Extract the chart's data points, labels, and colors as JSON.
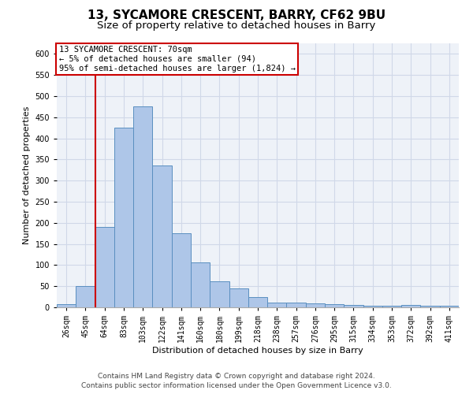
{
  "title": "13, SYCAMORE CRESCENT, BARRY, CF62 9BU",
  "subtitle": "Size of property relative to detached houses in Barry",
  "xlabel": "Distribution of detached houses by size in Barry",
  "ylabel": "Number of detached properties",
  "bar_labels": [
    "26sqm",
    "45sqm",
    "64sqm",
    "83sqm",
    "103sqm",
    "122sqm",
    "141sqm",
    "160sqm",
    "180sqm",
    "199sqm",
    "218sqm",
    "238sqm",
    "257sqm",
    "276sqm",
    "295sqm",
    "315sqm",
    "334sqm",
    "353sqm",
    "372sqm",
    "392sqm",
    "411sqm"
  ],
  "bar_heights": [
    7,
    51,
    190,
    426,
    475,
    336,
    175,
    107,
    62,
    44,
    24,
    11,
    11,
    9,
    7,
    5,
    4,
    4,
    6,
    4,
    4
  ],
  "bar_color": "#aec6e8",
  "bar_edge_color": "#5a8fc0",
  "vline_index": 2,
  "vline_color": "#cc0000",
  "annotation_box_text": "13 SYCAMORE CRESCENT: 70sqm\n← 5% of detached houses are smaller (94)\n95% of semi-detached houses are larger (1,824) →",
  "annotation_box_color": "#cc0000",
  "ylim": [
    0,
    625
  ],
  "yticks": [
    0,
    50,
    100,
    150,
    200,
    250,
    300,
    350,
    400,
    450,
    500,
    550,
    600
  ],
  "grid_color": "#d0d8e8",
  "background_color": "#eef2f8",
  "footer_line1": "Contains HM Land Registry data © Crown copyright and database right 2024.",
  "footer_line2": "Contains public sector information licensed under the Open Government Licence v3.0.",
  "title_fontsize": 11,
  "subtitle_fontsize": 9.5,
  "axis_label_fontsize": 8,
  "tick_fontsize": 7,
  "footer_fontsize": 6.5,
  "annotation_fontsize": 7.5
}
